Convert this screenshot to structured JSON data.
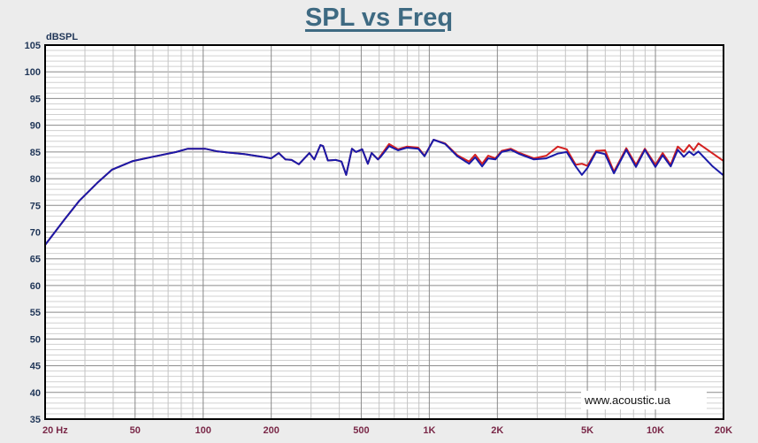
{
  "chart_data": {
    "type": "line",
    "title": "SPL vs Freq",
    "ylabel": "dBSPL",
    "xlabel": "",
    "xscale": "log",
    "xlim": [
      20,
      20000
    ],
    "ylim": [
      35,
      105
    ],
    "grid": true,
    "yticks": [
      35,
      40,
      45,
      50,
      55,
      60,
      65,
      70,
      75,
      80,
      85,
      90,
      95,
      100,
      105
    ],
    "xticks": [
      {
        "value": 20,
        "label": "20  Hz"
      },
      {
        "value": 50,
        "label": "50"
      },
      {
        "value": 100,
        "label": "100"
      },
      {
        "value": 200,
        "label": "200"
      },
      {
        "value": 500,
        "label": "500"
      },
      {
        "value": 1000,
        "label": "1K"
      },
      {
        "value": 2000,
        "label": "2K"
      },
      {
        "value": 5000,
        "label": "5K"
      },
      {
        "value": 10000,
        "label": "10K"
      },
      {
        "value": 20000,
        "label": "20K"
      }
    ],
    "series": [
      {
        "name": "red",
        "color": "#d42020",
        "points": [
          [
            20,
            67.6
          ],
          [
            24.4,
            72.4
          ],
          [
            28.4,
            75.9
          ],
          [
            34,
            79.2
          ],
          [
            39.6,
            81.7
          ],
          [
            48.9,
            83.3
          ],
          [
            59.9,
            84.1
          ],
          [
            76,
            85
          ],
          [
            85.6,
            85.6
          ],
          [
            102,
            85.6
          ],
          [
            116,
            85.1
          ],
          [
            152,
            84.6
          ],
          [
            188,
            84
          ],
          [
            200,
            83.8
          ],
          [
            216,
            84.8
          ],
          [
            231,
            83.6
          ],
          [
            246,
            83.5
          ],
          [
            265,
            82.7
          ],
          [
            295,
            84.8
          ],
          [
            310,
            83.6
          ],
          [
            330,
            86.3
          ],
          [
            339,
            86.1
          ],
          [
            356,
            83.4
          ],
          [
            386,
            83.5
          ],
          [
            409,
            83.2
          ],
          [
            429,
            80.7
          ],
          [
            455,
            85.6
          ],
          [
            474,
            85
          ],
          [
            505,
            85.5
          ],
          [
            535,
            82.8
          ],
          [
            556,
            84.8
          ],
          [
            593,
            83.6
          ],
          [
            607,
            84.2
          ],
          [
            664,
            86.5
          ],
          [
            727,
            85.5
          ],
          [
            796,
            86
          ],
          [
            894,
            85.8
          ],
          [
            953,
            84.3
          ],
          [
            1044,
            87.3
          ],
          [
            1175,
            86.6
          ],
          [
            1330,
            84.4
          ],
          [
            1500,
            83.2
          ],
          [
            1595,
            84.5
          ],
          [
            1713,
            82.8
          ],
          [
            1820,
            84.3
          ],
          [
            1960,
            83.8
          ],
          [
            2090,
            85.2
          ],
          [
            2290,
            85.6
          ],
          [
            2510,
            84.8
          ],
          [
            2900,
            83.8
          ],
          [
            3290,
            84.3
          ],
          [
            3700,
            86
          ],
          [
            4050,
            85.5
          ],
          [
            4440,
            82.6
          ],
          [
            4730,
            82.8
          ],
          [
            5000,
            82.4
          ],
          [
            5470,
            85.2
          ],
          [
            5990,
            85.3
          ],
          [
            6550,
            81.3
          ],
          [
            7430,
            85.7
          ],
          [
            8200,
            82.6
          ],
          [
            8980,
            85.6
          ],
          [
            10000,
            82.6
          ],
          [
            10760,
            84.8
          ],
          [
            11680,
            82.6
          ],
          [
            12550,
            86
          ],
          [
            13350,
            85
          ],
          [
            14100,
            86.3
          ],
          [
            14770,
            85.3
          ],
          [
            15480,
            86.6
          ],
          [
            17800,
            84.8
          ],
          [
            20000,
            83.3
          ]
        ]
      },
      {
        "name": "blue",
        "color": "#1a1aa8",
        "points": [
          [
            20,
            67.6
          ],
          [
            24.4,
            72.4
          ],
          [
            28.4,
            75.9
          ],
          [
            34,
            79.2
          ],
          [
            39.6,
            81.7
          ],
          [
            48.9,
            83.3
          ],
          [
            59.9,
            84.1
          ],
          [
            76,
            85
          ],
          [
            85.6,
            85.6
          ],
          [
            102,
            85.6
          ],
          [
            116,
            85.1
          ],
          [
            152,
            84.6
          ],
          [
            188,
            84
          ],
          [
            200,
            83.8
          ],
          [
            216,
            84.8
          ],
          [
            231,
            83.6
          ],
          [
            246,
            83.5
          ],
          [
            265,
            82.7
          ],
          [
            295,
            84.8
          ],
          [
            310,
            83.6
          ],
          [
            330,
            86.3
          ],
          [
            339,
            86.1
          ],
          [
            356,
            83.4
          ],
          [
            386,
            83.5
          ],
          [
            409,
            83.2
          ],
          [
            429,
            80.7
          ],
          [
            455,
            85.6
          ],
          [
            474,
            85
          ],
          [
            505,
            85.5
          ],
          [
            535,
            82.8
          ],
          [
            556,
            84.8
          ],
          [
            593,
            83.6
          ],
          [
            607,
            84
          ],
          [
            664,
            86.1
          ],
          [
            727,
            85.3
          ],
          [
            796,
            85.8
          ],
          [
            894,
            85.6
          ],
          [
            953,
            84.2
          ],
          [
            1044,
            87.3
          ],
          [
            1175,
            86.5
          ],
          [
            1330,
            84.2
          ],
          [
            1500,
            82.8
          ],
          [
            1595,
            84
          ],
          [
            1713,
            82.3
          ],
          [
            1820,
            83.8
          ],
          [
            1960,
            83.6
          ],
          [
            2090,
            85
          ],
          [
            2290,
            85.4
          ],
          [
            2510,
            84.6
          ],
          [
            2900,
            83.6
          ],
          [
            3290,
            83.8
          ],
          [
            3700,
            84.7
          ],
          [
            4050,
            85
          ],
          [
            4440,
            82.3
          ],
          [
            4730,
            80.7
          ],
          [
            5000,
            82
          ],
          [
            5470,
            85
          ],
          [
            5990,
            84.6
          ],
          [
            6550,
            81
          ],
          [
            7430,
            85.4
          ],
          [
            8200,
            82.2
          ],
          [
            8980,
            85.4
          ],
          [
            10000,
            82.2
          ],
          [
            10760,
            84.4
          ],
          [
            11680,
            82.3
          ],
          [
            12550,
            85.4
          ],
          [
            13350,
            84.1
          ],
          [
            14100,
            85.1
          ],
          [
            14770,
            84.4
          ],
          [
            15480,
            85.1
          ],
          [
            17800,
            82.4
          ],
          [
            20000,
            80.6
          ]
        ]
      }
    ],
    "watermark": "www.acoustic.ua"
  }
}
